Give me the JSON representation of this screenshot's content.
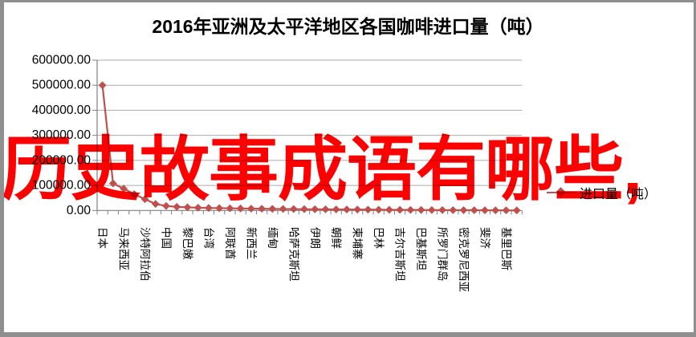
{
  "page": {
    "background": "#ffffff",
    "frame_color": "#8f8f8f"
  },
  "watermark": {
    "text": "历史故事成语有哪些,",
    "color": "#fe0000"
  },
  "chart_data": {
    "type": "line",
    "title": "2016年亚洲及太平洋地区各国咖啡进口量（吨）",
    "legend": {
      "label": "进口量（吨）",
      "position": "right",
      "marker": "diamond"
    },
    "grid": true,
    "colors": {
      "series": "#C0504D",
      "gridline": "#ababab",
      "axis": "#808080",
      "text": "#000000"
    },
    "y_axis": {
      "min": 0,
      "max": 600000,
      "step": 100000,
      "tick_labels": [
        "600000.00",
        "500000.00",
        "400000.00",
        "300000.00",
        "200000.00",
        "100000.00",
        "0.00"
      ]
    },
    "x_axis": {
      "label_rotation_deg": 90,
      "label_interval": 2
    },
    "categories": [
      "日本",
      "",
      "马来西亚",
      "",
      "沙特阿拉伯",
      "",
      "中国",
      "",
      "黎巴嫩",
      "",
      "台湾",
      "",
      "阿联酋",
      "",
      "新西兰",
      "",
      "缅甸",
      "",
      "哈萨克斯坦",
      "",
      "伊朗",
      "",
      "朝鲜",
      "",
      "柬埔寨",
      "",
      "巴林",
      "",
      "吉尔吉斯坦",
      "",
      "巴基斯坦",
      "",
      "所罗门群岛",
      "",
      "密克罗尼西亚",
      "",
      "斐济",
      "",
      "基里巴斯",
      ""
    ],
    "series": [
      {
        "name": "进口量（吨）",
        "marker": "diamond",
        "values": [
          500000,
          108000,
          87000,
          65000,
          45000,
          26000,
          18000,
          14500,
          12500,
          11000,
          10000,
          9200,
          8500,
          7900,
          7400,
          6900,
          6400,
          6000,
          5600,
          5200,
          4800,
          4500,
          4200,
          3900,
          3600,
          3300,
          3000,
          2750,
          2500,
          2250,
          2000,
          1800,
          1600,
          1400,
          1200,
          1000,
          800,
          600,
          450,
          300
        ]
      }
    ]
  }
}
